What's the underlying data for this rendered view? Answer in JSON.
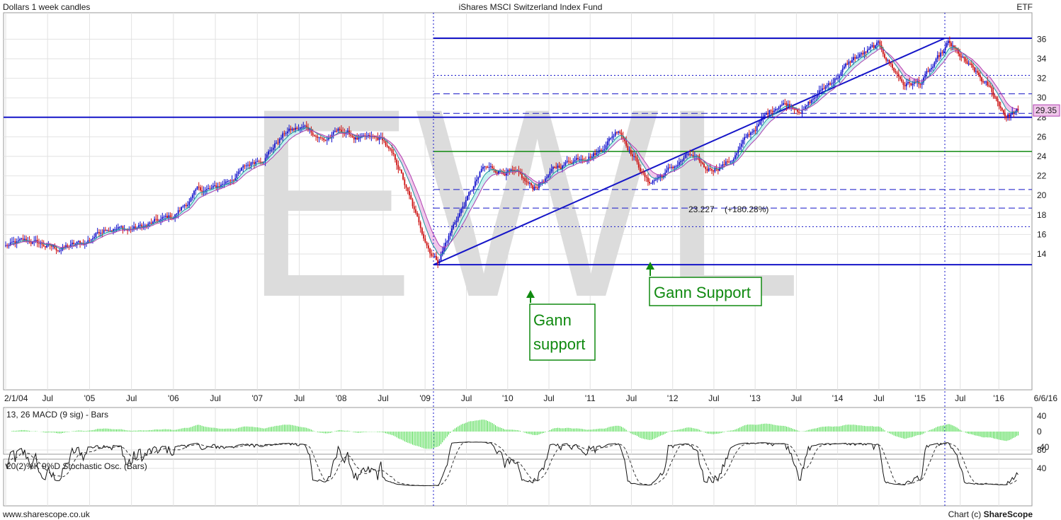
{
  "header": {
    "left": "Dollars 1 week candles",
    "title": "iShares MSCI Switzerland Index Fund",
    "right": "ETF"
  },
  "footer": {
    "left": "www.sharescope.co.uk",
    "right_prefix": "Chart (c) ",
    "right_brand": "ShareScope"
  },
  "watermark": "EWL",
  "colors": {
    "up": "#1010cc",
    "down": "#cc1010",
    "line": "#1515c8",
    "green": "#108a10",
    "macd": "#40d840",
    "cloud_up": "#c6f0f0",
    "cloud_down": "#f0c6ea",
    "watermark": "#dcdcdc"
  },
  "chart_data": [
    {
      "type": "candlestick",
      "title": "iShares MSCI Switzerland Index Fund",
      "ylabel": "Dollars",
      "ylim": [
        12,
        37
      ],
      "y_ticks": [
        14,
        16,
        18,
        20,
        22,
        24,
        26,
        28,
        30,
        32,
        34,
        36
      ],
      "x_tick_labels": [
        "2/1/04",
        "Jul",
        "'05",
        "Jul",
        "'06",
        "Jul",
        "'07",
        "Jul",
        "'08",
        "Jul",
        "'09",
        "Jul",
        "'10",
        "Jul",
        "'11",
        "Jul",
        "'12",
        "Jul",
        "'13",
        "Jul",
        "'14",
        "Jul",
        "'15",
        "Jul",
        "'16",
        "6/6/16"
      ],
      "price_path": [
        [
          2004.0,
          14.8
        ],
        [
          2004.3,
          15.2
        ],
        [
          2004.6,
          14.5
        ],
        [
          2004.95,
          15.1
        ],
        [
          2005.2,
          17.0
        ],
        [
          2005.45,
          16.5
        ],
        [
          2005.7,
          16.9
        ],
        [
          2006.0,
          17.8
        ],
        [
          2006.3,
          20.5
        ],
        [
          2006.5,
          20.6
        ],
        [
          2006.8,
          22.5
        ],
        [
          2007.1,
          24.3
        ],
        [
          2007.35,
          26.6
        ],
        [
          2007.6,
          26.9
        ],
        [
          2007.8,
          25.7
        ],
        [
          2008.0,
          26.6
        ],
        [
          2008.25,
          25.6
        ],
        [
          2008.5,
          25.6
        ],
        [
          2008.7,
          22.5
        ],
        [
          2008.9,
          17.5
        ],
        [
          2009.05,
          14.6
        ],
        [
          2009.15,
          13.4
        ],
        [
          2009.4,
          18.0
        ],
        [
          2009.7,
          22.6
        ],
        [
          2010.0,
          22.6
        ],
        [
          2010.3,
          20.6
        ],
        [
          2010.6,
          22.8
        ],
        [
          2010.9,
          24.2
        ],
        [
          2011.1,
          24.6
        ],
        [
          2011.35,
          27.0
        ],
        [
          2011.55,
          23.8
        ],
        [
          2011.7,
          21.3
        ],
        [
          2011.9,
          22.2
        ],
        [
          2012.2,
          24.1
        ],
        [
          2012.4,
          22.5
        ],
        [
          2012.7,
          23.6
        ],
        [
          2013.0,
          26.9
        ],
        [
          2013.3,
          29.6
        ],
        [
          2013.6,
          29.0
        ],
        [
          2013.9,
          31.5
        ],
        [
          2014.2,
          34.0
        ],
        [
          2014.5,
          35.2
        ],
        [
          2014.8,
          31.5
        ],
        [
          2015.0,
          31.5
        ],
        [
          2015.2,
          33.5
        ],
        [
          2015.35,
          35.4
        ],
        [
          2015.6,
          33.2
        ],
        [
          2015.9,
          30.6
        ],
        [
          2016.1,
          28.2
        ],
        [
          2016.25,
          28.7
        ]
      ],
      "current_price": "29.35",
      "annotations": {
        "trendline_label": "23.227",
        "trendline_pct": "+180.28%",
        "gann_support_1": [
          "Gann",
          "support"
        ],
        "gann_support_2": "Gann Support"
      },
      "key_lines": {
        "top": 36.1,
        "bottom": 12.9,
        "support": 28.0,
        "green": 24.5,
        "dashed": [
          30.4,
          28.4,
          20.6,
          18.7
        ],
        "dotted": [
          32.3,
          16.8
        ],
        "trend_start": [
          2009.1,
          12.9
        ],
        "trend_end": [
          2015.3,
          36.1
        ],
        "vertical_dates": [
          2009.1,
          2015.3
        ]
      }
    },
    {
      "type": "bar",
      "title": "13, 26 MACD (9 sig) - Bars",
      "ylim": [
        -50,
        50
      ],
      "y_ticks": [
        -40,
        0,
        40
      ]
    },
    {
      "type": "line",
      "title": "20(2)%K 9%D Stochastic Osc. (Bars)",
      "ylim": [
        0,
        100
      ],
      "y_ticks": [
        40,
        80
      ]
    }
  ]
}
